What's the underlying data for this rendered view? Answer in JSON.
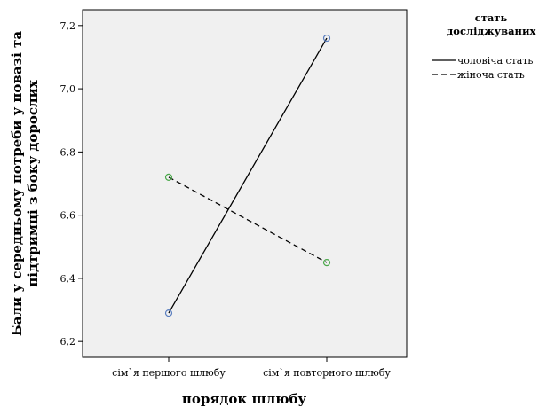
{
  "chart_data": {
    "type": "line",
    "categories": [
      "сім`я першого шлюбу",
      "сім`я повторного шлюбу"
    ],
    "series": [
      {
        "name": "чоловіча стать",
        "values": [
          6.29,
          7.16
        ],
        "dash": "solid",
        "marker_color": "#5b7fbf"
      },
      {
        "name": "жіноча стать",
        "values": [
          6.72,
          6.45
        ],
        "dash": "dashed",
        "marker_color": "#4aa84a"
      }
    ],
    "ylim": [
      6.15,
      7.25
    ],
    "yticks": [
      6.2,
      6.4,
      6.6,
      6.8,
      7.0,
      7.2
    ],
    "ytick_labels": [
      "6,2",
      "6,4",
      "6,6",
      "6,8",
      "7,0",
      "7,2"
    ],
    "xlabel": "порядок шлюбу",
    "ylabel_lines": [
      "Бали у середньому потреби у повазі та",
      "підтримці з боку дорослих"
    ],
    "legend_title_lines": [
      "стать",
      "досліджуваних"
    ],
    "legend_position": "right",
    "grid": false,
    "plot_bg": "#f0f0f0"
  }
}
